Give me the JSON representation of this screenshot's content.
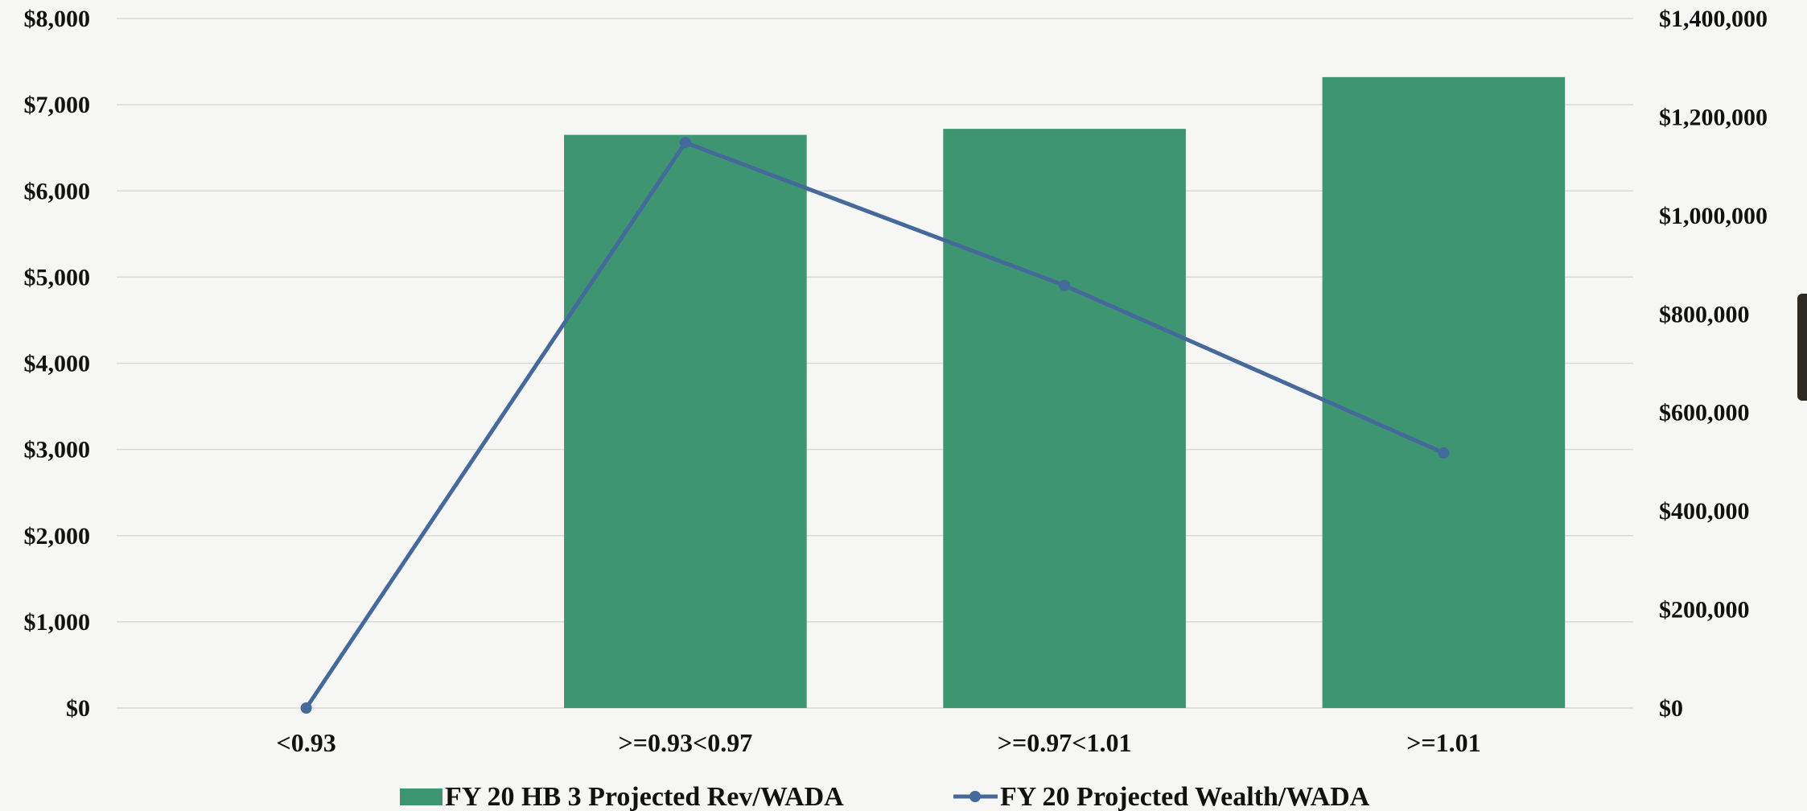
{
  "chart_data": {
    "type": "bar",
    "categories": [
      "<0.93",
      ">=0.93<0.97",
      ">=0.97<1.01",
      ">=1.01"
    ],
    "series": [
      {
        "name": "FY 20 HB 3 Projected Rev/WADA",
        "type": "bar",
        "axis": "left",
        "color": "#3d9671",
        "values": [
          0,
          6650,
          6720,
          7320
        ]
      },
      {
        "name": "FY 20 Projected Wealth/WADA",
        "type": "line",
        "axis": "right",
        "color": "#44699a",
        "values": [
          0,
          1148000,
          858000,
          518000
        ]
      }
    ],
    "y_left": {
      "lim": [
        0,
        8000
      ],
      "ticks": [
        0,
        1000,
        2000,
        3000,
        4000,
        5000,
        6000,
        7000,
        8000
      ],
      "tick_labels": [
        "$0",
        "$1,000",
        "$2,000",
        "$3,000",
        "$4,000",
        "$5,000",
        "$6,000",
        "$7,000",
        "$8,000"
      ]
    },
    "y_right": {
      "lim": [
        0,
        1400000
      ],
      "ticks": [
        0,
        200000,
        400000,
        600000,
        800000,
        1000000,
        1200000,
        1400000
      ],
      "tick_labels": [
        "$0",
        "$200,000",
        "$400,000",
        "$600,000",
        "$800,000",
        "$1,000,000",
        "$1,200,000",
        "$1,400,000"
      ]
    },
    "grid": true,
    "legend_position": "bottom-center"
  }
}
